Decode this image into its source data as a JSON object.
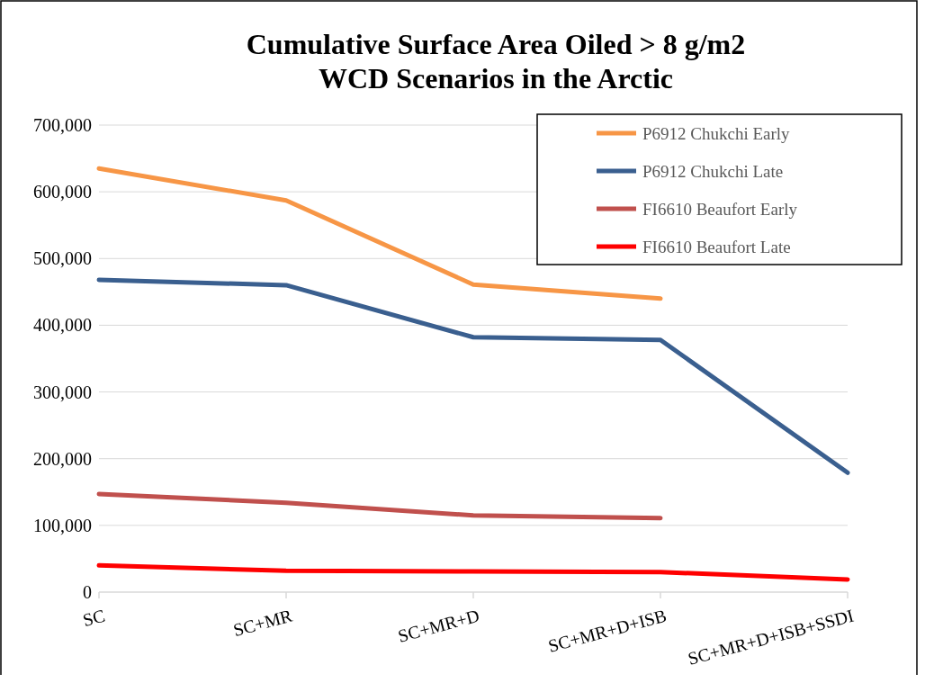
{
  "chart_data": {
    "type": "line",
    "title": "Cumulative Surface Area Oiled  > 8 g/m2\nWCD Scenarios in the Arctic",
    "categories": [
      "SC",
      "SC+MR",
      "SC+MR+D",
      "SC+MR+D+ISB",
      "SC+MR+D+ISB+SSDI"
    ],
    "series": [
      {
        "name": "P6912 Chukchi Early",
        "color": "#f79646",
        "values": [
          635000,
          587000,
          461000,
          440000,
          null
        ]
      },
      {
        "name": "P6912 Chukchi Late",
        "color": "#3a5f8f",
        "values": [
          468000,
          460000,
          382000,
          378000,
          179000
        ]
      },
      {
        "name": "FI6610 Beaufort Early",
        "color": "#c0504d",
        "values": [
          147000,
          134000,
          115000,
          111000,
          null
        ]
      },
      {
        "name": "FI6610 Beaufort Late",
        "color": "#ff0000",
        "values": [
          40000,
          32000,
          31000,
          30000,
          19000
        ]
      }
    ],
    "ylim": [
      0,
      700000
    ],
    "yticks": [
      {
        "value": 0,
        "label": "0"
      },
      {
        "value": 100000,
        "label": "100,000"
      },
      {
        "value": 200000,
        "label": "200,000"
      },
      {
        "value": 300000,
        "label": "300,000"
      },
      {
        "value": 400000,
        "label": "400,000"
      },
      {
        "value": 500000,
        "label": "500,000"
      },
      {
        "value": 600000,
        "label": "600,000"
      },
      {
        "value": 700000,
        "label": "700,000"
      }
    ],
    "grid": "y",
    "legend": "top right",
    "marker": "none",
    "line_style": "solid"
  }
}
